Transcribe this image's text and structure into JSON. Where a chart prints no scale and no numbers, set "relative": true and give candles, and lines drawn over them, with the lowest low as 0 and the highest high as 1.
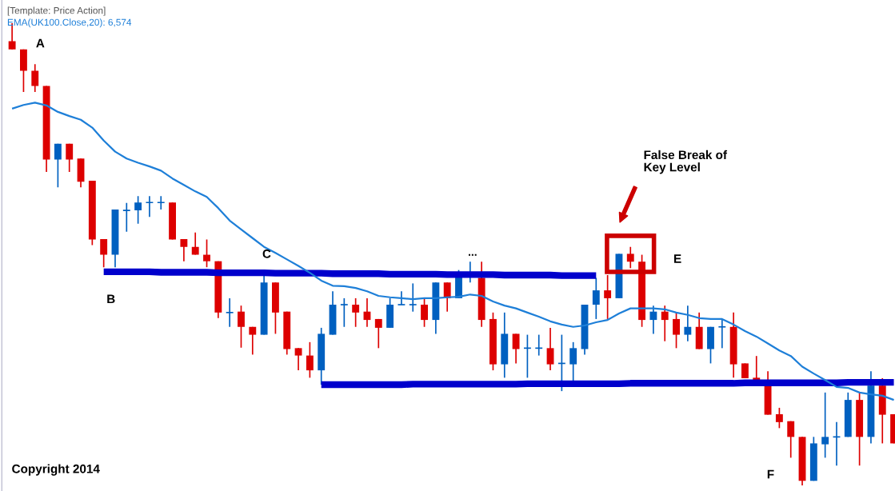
{
  "chart_data": {
    "type": "candlestick",
    "relative": true,
    "categories": [
      null,
      null,
      null,
      null,
      null,
      null,
      null,
      null,
      null,
      null,
      null,
      null,
      null,
      null,
      null,
      null,
      null,
      null,
      null,
      null,
      null,
      null,
      null,
      null,
      null,
      null,
      null,
      null,
      null,
      null,
      null,
      null,
      null,
      null,
      null,
      null,
      null,
      null,
      null,
      null,
      null,
      null,
      null,
      null,
      null,
      null,
      null,
      null,
      null,
      null,
      null,
      null,
      null,
      null,
      null,
      null,
      null,
      null,
      null,
      null,
      null,
      null,
      null,
      null,
      null,
      null,
      null,
      null,
      null,
      null,
      null,
      null,
      null,
      null,
      null,
      null,
      null,
      null
    ],
    "ohlc": [
      [
        0.961,
        1,
        0.943,
        0.943
      ],
      [
        0.943,
        0.943,
        0.851,
        0.897
      ],
      [
        0.897,
        0.911,
        0.851,
        0.864
      ],
      [
        0.864,
        0.864,
        0.678,
        0.705
      ],
      [
        0.705,
        0.739,
        0.645,
        0.739
      ],
      [
        0.739,
        0.739,
        0.678,
        0.705
      ],
      [
        0.707,
        0.707,
        0.645,
        0.657
      ],
      [
        0.659,
        0.659,
        0.52,
        0.532
      ],
      [
        0.533,
        0.533,
        0.472,
        0.499
      ],
      [
        0.499,
        0.597,
        0.472,
        0.597
      ],
      [
        0.595,
        0.611,
        0.549,
        0.595
      ],
      [
        0.595,
        0.626,
        0.566,
        0.612
      ],
      [
        0.612,
        0.626,
        0.581,
        0.612
      ],
      [
        0.612,
        0.626,
        0.597,
        0.612
      ],
      [
        0.612,
        0.612,
        0.532,
        0.532
      ],
      [
        0.533,
        0.533,
        0.485,
        0.516
      ],
      [
        0.516,
        0.547,
        0.499,
        0.499
      ],
      [
        0.499,
        0.532,
        0.472,
        0.485
      ],
      [
        0.485,
        0.485,
        0.362,
        0.374
      ],
      [
        0.374,
        0.405,
        0.343,
        0.374
      ],
      [
        0.376,
        0.389,
        0.298,
        0.343
      ],
      [
        0.343,
        0.343,
        0.283,
        0.326
      ],
      [
        0.326,
        0.455,
        0.326,
        0.439
      ],
      [
        0.439,
        0.439,
        0.328,
        0.374
      ],
      [
        0.376,
        0.376,
        0.283,
        0.295
      ],
      [
        0.297,
        0.297,
        0.249,
        0.281
      ],
      [
        0.281,
        0.31,
        0.233,
        0.249
      ],
      [
        0.249,
        0.341,
        0.218,
        0.328
      ],
      [
        0.326,
        0.42,
        0.326,
        0.391
      ],
      [
        0.391,
        0.405,
        0.343,
        0.391
      ],
      [
        0.391,
        0.405,
        0.343,
        0.374
      ],
      [
        0.376,
        0.405,
        0.343,
        0.358
      ],
      [
        0.36,
        0.36,
        0.297,
        0.341
      ],
      [
        0.341,
        0.405,
        0.341,
        0.391
      ],
      [
        0.391,
        0.42,
        0.391,
        0.391
      ],
      [
        0.391,
        0.437,
        0.376,
        0.391
      ],
      [
        0.391,
        0.405,
        0.343,
        0.358
      ],
      [
        0.358,
        0.439,
        0.328,
        0.439
      ],
      [
        0.439,
        0.439,
        0.376,
        0.405
      ],
      [
        0.405,
        0.466,
        0.405,
        0.451
      ],
      [
        0.456,
        0.484,
        0.439,
        0.456
      ],
      [
        0.449,
        0.484,
        0.343,
        0.358
      ],
      [
        0.36,
        0.374,
        0.249,
        0.262
      ],
      [
        0.262,
        0.374,
        0.233,
        0.328
      ],
      [
        0.328,
        0.328,
        0.264,
        0.295
      ],
      [
        0.297,
        0.326,
        0.233,
        0.297
      ],
      [
        0.297,
        0.326,
        0.281,
        0.297
      ],
      [
        0.297,
        0.341,
        0.249,
        0.262
      ],
      [
        0.264,
        0.326,
        0.204,
        0.264
      ],
      [
        0.262,
        0.31,
        0.225,
        0.297
      ],
      [
        0.295,
        0.391,
        0.283,
        0.391
      ],
      [
        0.391,
        0.449,
        0.36,
        0.422
      ],
      [
        0.422,
        0.455,
        0.36,
        0.405
      ],
      [
        0.405,
        0.501,
        0.405,
        0.501
      ],
      [
        0.501,
        0.516,
        0.47,
        0.484
      ],
      [
        0.484,
        0.499,
        0.343,
        0.358
      ],
      [
        0.358,
        0.389,
        0.328,
        0.376
      ],
      [
        0.376,
        0.389,
        0.312,
        0.358
      ],
      [
        0.36,
        0.374,
        0.297,
        0.326
      ],
      [
        0.326,
        0.389,
        0.312,
        0.343
      ],
      [
        0.343,
        0.374,
        0.295,
        0.295
      ],
      [
        0.295,
        0.343,
        0.264,
        0.343
      ],
      [
        0.343,
        0.36,
        0.297,
        0.343
      ],
      [
        0.343,
        0.374,
        0.233,
        0.262
      ],
      [
        0.264,
        0.264,
        0.232,
        0.232
      ],
      [
        0.233,
        0.28,
        0.225,
        0.225
      ],
      [
        0.225,
        0.247,
        0.153,
        0.153
      ],
      [
        0.154,
        0.168,
        0.124,
        0.137
      ],
      [
        0.139,
        0.139,
        0.06,
        0.105
      ],
      [
        0.105,
        0.105,
        0,
        0.01
      ],
      [
        0.01,
        0.105,
        0.01,
        0.091
      ],
      [
        0.089,
        0.201,
        0.06,
        0.105
      ],
      [
        0.105,
        0.137,
        0.043,
        0.105
      ],
      [
        0.105,
        0.201,
        0.105,
        0.185
      ],
      [
        0.185,
        0.199,
        0.043,
        0.105
      ],
      [
        0.105,
        0.247,
        0.091,
        0.216
      ],
      [
        0.216,
        0.232,
        0.091,
        0.153
      ],
      [
        0.154,
        0.154,
        0.091,
        0.091
      ]
    ],
    "colors": [
      "#dd0000",
      "#dd0000",
      "#dd0000",
      "#dd0000",
      "#0060c0",
      "#dd0000",
      "#dd0000",
      "#dd0000",
      "#dd0000",
      "#0060c0",
      "#0060c0",
      "#0060c0",
      "#0060c0",
      "#0060c0",
      "#dd0000",
      "#dd0000",
      "#dd0000",
      "#dd0000",
      "#dd0000",
      "#0060c0",
      "#dd0000",
      "#dd0000",
      "#0060c0",
      "#dd0000",
      "#dd0000",
      "#dd0000",
      "#dd0000",
      "#0060c0",
      "#0060c0",
      "#0060c0",
      "#dd0000",
      "#dd0000",
      "#dd0000",
      "#0060c0",
      "#0060c0",
      "#0060c0",
      "#dd0000",
      "#0060c0",
      "#dd0000",
      "#0060c0",
      "#0060c0",
      "#dd0000",
      "#dd0000",
      "#0060c0",
      "#dd0000",
      "#0060c0",
      "#0060c0",
      "#dd0000",
      "#0060c0",
      "#0060c0",
      "#0060c0",
      "#0060c0",
      "#dd0000",
      "#0060c0",
      "#dd0000",
      "#dd0000",
      "#0060c0",
      "#dd0000",
      "#dd0000",
      "#0060c0",
      "#dd0000",
      "#0060c0",
      "#0060c0",
      "#dd0000",
      "#dd0000",
      "#dd0000",
      "#dd0000",
      "#dd0000",
      "#dd0000",
      "#dd0000",
      "#0060c0",
      "#0060c0",
      "#0060c0",
      "#0060c0",
      "#dd0000",
      "#0060c0",
      "#dd0000",
      "#dd0000"
    ],
    "series": [
      {
        "type": "line",
        "name": "EMA(UK100.Close,20): 6,574",
        "color": "#1e7fd8",
        "values": [
          0.815,
          0.823,
          0.828,
          0.822,
          0.808,
          0.799,
          0.791,
          0.774,
          0.746,
          0.722,
          0.707,
          0.698,
          0.69,
          0.681,
          0.664,
          0.65,
          0.636,
          0.624,
          0.6,
          0.573,
          0.554,
          0.535,
          0.516,
          0.503,
          0.489,
          0.475,
          0.46,
          0.443,
          0.432,
          0.431,
          0.427,
          0.42,
          0.41,
          0.407,
          0.405,
          0.403,
          0.405,
          0.405,
          0.407,
          0.408,
          0.413,
          0.41,
          0.398,
          0.389,
          0.383,
          0.374,
          0.365,
          0.355,
          0.348,
          0.343,
          0.346,
          0.353,
          0.358,
          0.372,
          0.383,
          0.383,
          0.383,
          0.381,
          0.374,
          0.369,
          0.362,
          0.36,
          0.36,
          0.348,
          0.334,
          0.322,
          0.307,
          0.292,
          0.28,
          0.257,
          0.242,
          0.228,
          0.213,
          0.211,
          0.201,
          0.197,
          0.194,
          0.185
        ]
      },
      {
        "type": "line",
        "color": "#0000cc",
        "values": [
          null,
          null,
          null,
          null,
          null,
          null,
          null,
          null,
          0.462,
          0.462,
          0.462,
          0.462,
          0.462,
          0.461,
          0.461,
          0.461,
          0.461,
          0.461,
          0.46,
          0.46,
          0.46,
          0.46,
          0.46,
          0.459,
          0.459,
          0.459,
          0.459,
          0.459,
          0.458,
          0.458,
          0.458,
          0.458,
          0.458,
          0.457,
          0.457,
          0.457,
          0.457,
          0.457,
          0.456,
          0.456,
          0.456,
          0.456,
          0.456,
          0.455,
          0.455,
          0.455,
          0.455,
          0.455,
          0.454,
          0.454,
          0.454,
          0.454,
          null,
          null,
          null,
          null,
          null,
          null,
          null,
          null,
          null,
          null,
          null,
          null,
          null,
          null,
          null,
          null,
          null,
          null,
          null,
          null,
          null,
          null,
          null,
          null,
          null,
          null
        ]
      },
      {
        "type": "line",
        "color": "#0000cc",
        "values": [
          null,
          null,
          null,
          null,
          null,
          null,
          null,
          null,
          null,
          null,
          null,
          null,
          null,
          null,
          null,
          null,
          null,
          null,
          null,
          null,
          null,
          null,
          null,
          null,
          null,
          null,
          null,
          0.218,
          0.218,
          0.218,
          0.218,
          0.218,
          0.218,
          0.218,
          0.218,
          0.219,
          0.219,
          0.219,
          0.219,
          0.219,
          0.219,
          0.219,
          0.219,
          0.219,
          0.219,
          0.22,
          0.22,
          0.22,
          0.22,
          0.22,
          0.22,
          0.22,
          0.22,
          0.22,
          0.221,
          0.221,
          0.221,
          0.221,
          0.221,
          0.221,
          0.221,
          0.221,
          0.221,
          0.221,
          0.222,
          0.222,
          0.222,
          0.222,
          0.222,
          0.222,
          0.222,
          0.222,
          0.222,
          0.223,
          0.223,
          0.223,
          0.223,
          0.223
        ]
      }
    ],
    "annotations": [
      "[Template: Price Action]",
      "A",
      "B",
      "C",
      "...",
      "E",
      "F",
      "False Break of\nKey Level",
      "Copyright 2014"
    ]
  }
}
